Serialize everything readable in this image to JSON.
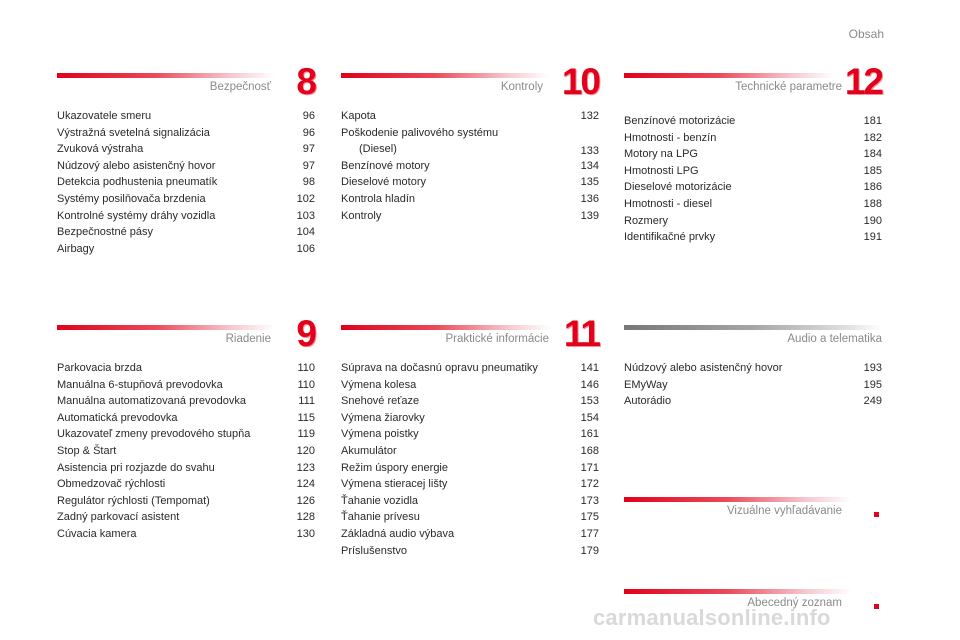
{
  "page_title": "Obsah",
  "sections": {
    "bezpecnost": {
      "title": "Bezpečnosť",
      "chapter": "8",
      "items": [
        {
          "label": "Ukazovatele smeru",
          "page": "96"
        },
        {
          "label": "Výstražná svetelná signalizácia",
          "page": "96"
        },
        {
          "label": "Zvuková výstraha",
          "page": "97"
        },
        {
          "label": "Núdzový alebo asistenčný hovor",
          "page": "97"
        },
        {
          "label": "Detekcia podhustenia pneumatík",
          "page": "98"
        },
        {
          "label": "Systémy posilňovača brzdenia",
          "page": "102"
        },
        {
          "label": "Kontrolné systémy dráhy vozidla",
          "page": "103"
        },
        {
          "label": "Bezpečnostné pásy",
          "page": "104"
        },
        {
          "label": "Airbagy",
          "page": "106"
        }
      ]
    },
    "kontroly": {
      "title": "Kontroly",
      "chapter": "10",
      "items": [
        {
          "label": "Kapota",
          "page": "132"
        },
        {
          "label": "Poškodenie palivového systému",
          "label2": "(Diesel)",
          "page": "133"
        },
        {
          "label": "Benzínové motory",
          "page": "134"
        },
        {
          "label": "Dieselové motory",
          "page": "135"
        },
        {
          "label": "Kontrola hladín",
          "page": "136"
        },
        {
          "label": "Kontroly",
          "page": "139"
        }
      ]
    },
    "technicke": {
      "title": "Technické parametre",
      "chapter": "12",
      "items": [
        {
          "label": "Benzínové motorizácie",
          "page": "181"
        },
        {
          "label": "Hmotnosti - benzín",
          "page": "182"
        },
        {
          "label": "Motory na LPG",
          "page": "184"
        },
        {
          "label": "Hmotnosti LPG",
          "page": "185"
        },
        {
          "label": "Dieselové motorizácie",
          "page": "186"
        },
        {
          "label": "Hmotnosti - diesel",
          "page": "188"
        },
        {
          "label": "Rozmery",
          "page": "190"
        },
        {
          "label": "Identifikačné prvky",
          "page": "191"
        }
      ]
    },
    "riadenie": {
      "title": "Riadenie",
      "chapter": "9",
      "items": [
        {
          "label": "Parkovacia brzda",
          "page": "110"
        },
        {
          "label": "Manuálna 6-stupňová prevodovka",
          "page": "110"
        },
        {
          "label": "Manuálna automatizovaná prevodovka",
          "page": "111"
        },
        {
          "label": "Automatická prevodovka",
          "page": "115"
        },
        {
          "label": "Ukazovateľ zmeny prevodového stupňa",
          "page": "119"
        },
        {
          "label": "Stop & Štart",
          "page": "120"
        },
        {
          "label": "Asistencia pri rozjazde do svahu",
          "page": "123"
        },
        {
          "label": "Obmedzovač rýchlosti",
          "page": "124"
        },
        {
          "label": "Regulátor rýchlosti (Tempomat)",
          "page": "126"
        },
        {
          "label": "Zadný parkovací asistent",
          "page": "128"
        },
        {
          "label": "Cúvacia kamera",
          "page": "130"
        }
      ]
    },
    "prakticke": {
      "title": "Praktické informácie",
      "chapter": "11",
      "items": [
        {
          "label": "Súprava na dočasnú opravu pneumatiky",
          "page": "141"
        },
        {
          "label": "Výmena kolesa",
          "page": "146"
        },
        {
          "label": "Snehové reťaze",
          "page": "153"
        },
        {
          "label": "Výmena žiarovky",
          "page": "154"
        },
        {
          "label": "Výmena poistky",
          "page": "161"
        },
        {
          "label": "Akumulátor",
          "page": "168"
        },
        {
          "label": "Režim úspory energie",
          "page": "171"
        },
        {
          "label": "Výmena stieracej lišty",
          "page": "172"
        },
        {
          "label": "Ťahanie vozidla",
          "page": "173"
        },
        {
          "label": "Ťahanie prívesu",
          "page": "175"
        },
        {
          "label": "Základná audio výbava",
          "page": "177"
        },
        {
          "label": "Príslušenstvo",
          "page": "179"
        }
      ]
    },
    "audio": {
      "title": "Audio a telematika",
      "items": [
        {
          "label": "Núdzový alebo asistenčný hovor",
          "page": "193"
        },
        {
          "label": "EMyWay",
          "page": "195"
        },
        {
          "label": "Autorádio",
          "page": "249"
        }
      ]
    },
    "vizualne": {
      "title": "Vizuálne vyhľadávanie"
    },
    "abecedny": {
      "title": "Abecedný zoznam"
    }
  },
  "watermark": "carmanualsonline.info",
  "colors": {
    "accent": "#e2001a",
    "text": "#2a2a2a",
    "muted": "#8a8a8a"
  }
}
